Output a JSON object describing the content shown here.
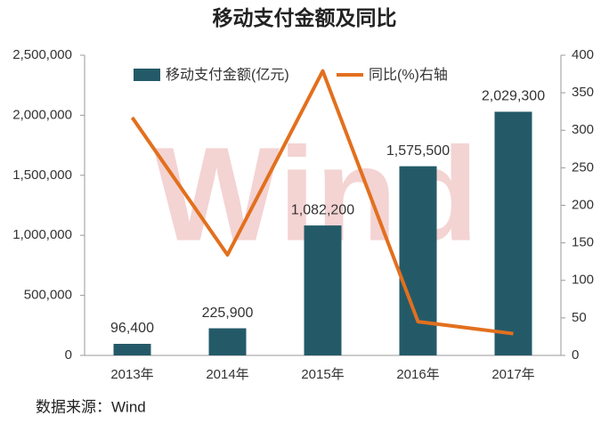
{
  "chart_data": {
    "type": "bar",
    "title": "移动支付金额及同比",
    "source": "数据来源：Wind",
    "watermark": "Wind",
    "categories": [
      "2013年",
      "2014年",
      "2015年",
      "2016年",
      "2017年"
    ],
    "series": [
      {
        "name": "移动支付金额(亿元)",
        "type": "bar",
        "color": "#245a68",
        "values": [
          96400,
          225900,
          1082200,
          1575500,
          2029300
        ],
        "value_labels": [
          "96,400",
          "225,900",
          "1,082,200",
          "1,575,500",
          "2,029,300"
        ]
      },
      {
        "name": "同比(%)右轴",
        "type": "line",
        "axis": "y2",
        "color": "#e2701e",
        "values": [
          317,
          134,
          379,
          45,
          29
        ]
      }
    ],
    "ylim": [
      0,
      2500000
    ],
    "yticks": [
      0,
      {
        "value": 500000,
        "label": "500,000"
      },
      {
        "value": 1000000,
        "label": "1,000,000"
      },
      {
        "value": 1500000,
        "label": "1,500,000"
      },
      {
        "value": 2000000,
        "label": "2,000,000"
      },
      {
        "value": 2500000,
        "label": "2,500,000"
      }
    ],
    "y2lim": [
      0,
      400
    ],
    "y2ticks": [
      0,
      50,
      100,
      150,
      200,
      250,
      300,
      350,
      400
    ],
    "legend": "top"
  }
}
